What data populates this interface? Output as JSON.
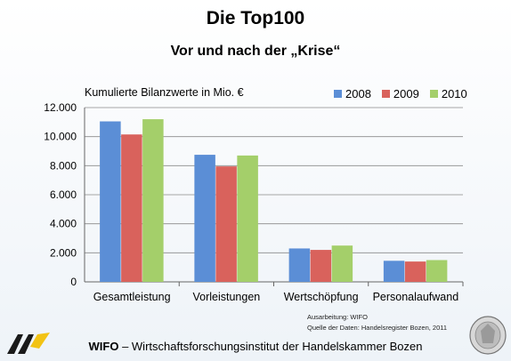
{
  "header": {
    "title": "Die Top100",
    "subtitle": "Vor und nach der „Krise“"
  },
  "chart_data": {
    "type": "bar",
    "ylabel": "Kumulierte Bilanzwerte in Mio. €",
    "categories": [
      "Gesamtleistung",
      "Vorleistungen",
      "Wertschöpfung",
      "Personalaufwand"
    ],
    "series": [
      {
        "name": "2008",
        "color": "#5b8ed6",
        "values": [
          11050,
          8750,
          2300,
          1450
        ]
      },
      {
        "name": "2009",
        "color": "#d9625c",
        "values": [
          10150,
          7950,
          2200,
          1400
        ]
      },
      {
        "name": "2010",
        "color": "#a4cf6a",
        "values": [
          11200,
          8700,
          2500,
          1500
        ]
      }
    ],
    "ylim": [
      0,
      12000
    ],
    "yticks": [
      "0",
      "2.000",
      "4.000",
      "6.000",
      "8.000",
      "10.000",
      "12.000"
    ],
    "grid": true,
    "legend": "top-right"
  },
  "credits": {
    "line1": "Ausarbeitung: WIFO",
    "line2": "Quelle der Daten: Handelsregister Bozen, 2011"
  },
  "footer": {
    "org": "WIFO",
    "rest": " – Wirtschaftsforschungsinstitut der Handelskammer Bozen"
  },
  "colors": {
    "logo_yellow": "#f2c314",
    "logo_dark": "#1a1a1a"
  }
}
